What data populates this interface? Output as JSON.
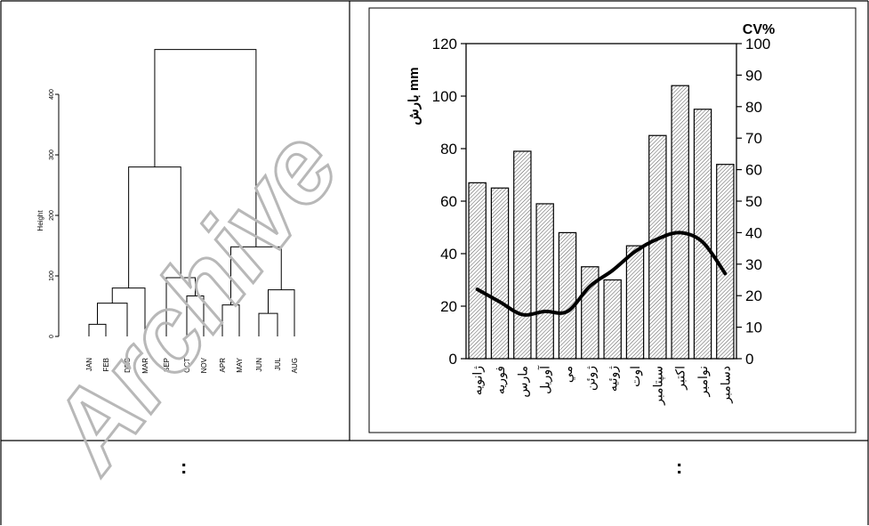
{
  "captions": {
    "left": ":",
    "right": ":"
  },
  "watermark": {
    "text": "Archive",
    "color": "#b8b8b8"
  },
  "chart_data": [
    {
      "type": "dendrogram",
      "ylabel": "Height",
      "ylim": [
        0,
        400
      ],
      "yticks": [
        0,
        100,
        200,
        300,
        400
      ],
      "leaves": [
        "JAN",
        "FEB",
        "DEC",
        "MAR",
        "SEP",
        "OCT",
        "NOV",
        "APR",
        "MAY",
        "JUN",
        "JUL",
        "AUG"
      ],
      "merges": [
        {
          "left": "JAN",
          "right": "FEB",
          "height": 20
        },
        {
          "left": "JAN+FEB",
          "right": "DEC",
          "height": 55
        },
        {
          "left": "OCT",
          "right": "NOV",
          "height": 67
        },
        {
          "left": "JAN+FEB+DEC",
          "right": "MAR",
          "height": 80
        },
        {
          "left": "SEP",
          "right": "OCT+NOV",
          "height": 97
        },
        {
          "left": "JAN+FEB+DEC+MAR",
          "right": "SEP+OCT+NOV",
          "height": 280
        },
        {
          "left": "JUN",
          "right": "JUL",
          "height": 38
        },
        {
          "left": "JUN+JUL",
          "right": "AUG",
          "height": 77
        },
        {
          "left": "APR",
          "right": "MAY",
          "height": 52
        },
        {
          "left": "APR+MAY",
          "right": "JUN+JUL+AUG",
          "height": 148
        },
        {
          "left": "JAN+FEB+DEC+MAR+SEP+OCT+NOV",
          "right": "APR+MAY+JUN+JUL+AUG",
          "height": 474
        }
      ]
    },
    {
      "type": "bar+line",
      "categories": [
        "ژانویه",
        "فوریه",
        "مارس",
        "آوریل",
        "مي",
        "ژوئن",
        "ژوئیه",
        "اوت",
        "سپتامبر",
        "اکتبر",
        "نوامبر",
        "دسامبر"
      ],
      "series": [
        {
          "axis": "left",
          "kind": "bar",
          "values": [
            67,
            65,
            79,
            59,
            48,
            35,
            30,
            43,
            85,
            104,
            95,
            74
          ]
        },
        {
          "axis": "right",
          "kind": "line",
          "values": [
            22,
            18,
            14,
            15,
            15,
            23,
            28,
            34,
            38,
            40,
            37,
            27
          ]
        }
      ],
      "ylabel": "بارش mm",
      "y2label": "CV%",
      "ylim": [
        0,
        120
      ],
      "y2lim": [
        0,
        100
      ],
      "yticks": [
        0,
        20,
        40,
        60,
        80,
        100,
        120
      ],
      "y2ticks": [
        0,
        10,
        20,
        30,
        40,
        50,
        60,
        70,
        80,
        90,
        100
      ]
    }
  ]
}
